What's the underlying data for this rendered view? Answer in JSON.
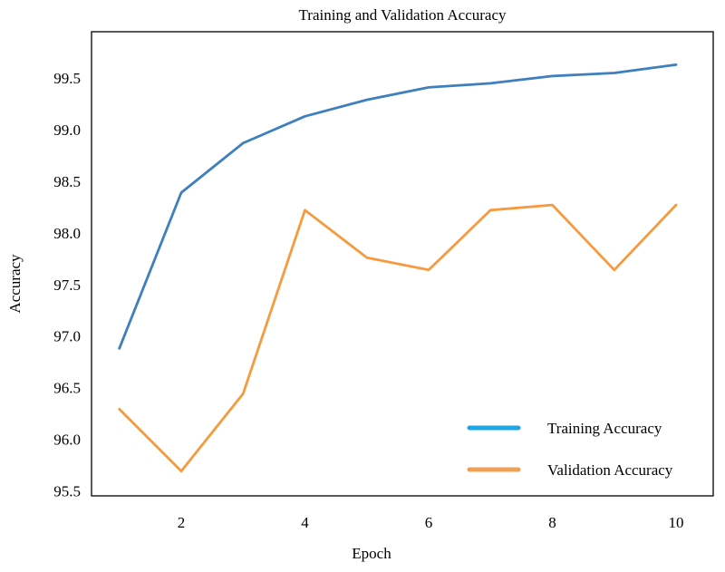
{
  "chart_data": {
    "type": "line",
    "title": "Training and Validation Accuracy",
    "xlabel": "Epoch",
    "ylabel": "Accuracy",
    "x": [
      1,
      2,
      3,
      4,
      5,
      6,
      7,
      8,
      9,
      10
    ],
    "xticks": [
      "2",
      "4",
      "6",
      "8",
      "10"
    ],
    "yticks": [
      "95.5",
      "96.0",
      "96.5",
      "97.0",
      "97.5",
      "98.0",
      "98.5",
      "99.0",
      "99.5"
    ],
    "xlim": [
      0.55,
      10.6
    ],
    "ylim": [
      95.45,
      99.95
    ],
    "grid": false,
    "legend_position": "bottom-right",
    "series": [
      {
        "name": "Training Accuracy",
        "color": "#3e7fbd",
        "legend_color": "#1da6e6",
        "values": [
          96.88,
          98.39,
          98.87,
          99.13,
          99.29,
          99.41,
          99.45,
          99.52,
          99.55,
          99.63
        ]
      },
      {
        "name": "Validation Accuracy",
        "color": "#f79a3e",
        "legend_color": "#f0a055",
        "values": [
          96.29,
          95.69,
          96.44,
          98.22,
          97.76,
          97.64,
          98.22,
          98.27,
          97.64,
          98.27
        ]
      }
    ]
  }
}
